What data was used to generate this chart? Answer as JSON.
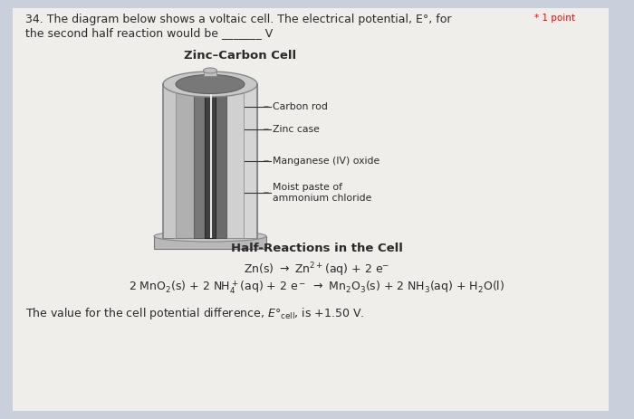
{
  "background_color": "#c8d0dc",
  "paper_color": "#f0eeeb",
  "title_question": "34. The diagram below shows a voltaic cell. The electrical potential, E°, for",
  "title_asterisk": "* 1 point",
  "title_line2": "the second half reaction would be _______ V",
  "cell_title": "Zinc–Carbon Cell",
  "labels": [
    "Carbon rod",
    "Zinc case",
    "Manganese (IV) oxide",
    "Moist paste of\nammonium chloride"
  ],
  "section_title": "Half-Reactions in the Cell",
  "text_color": "#2a2a2a"
}
